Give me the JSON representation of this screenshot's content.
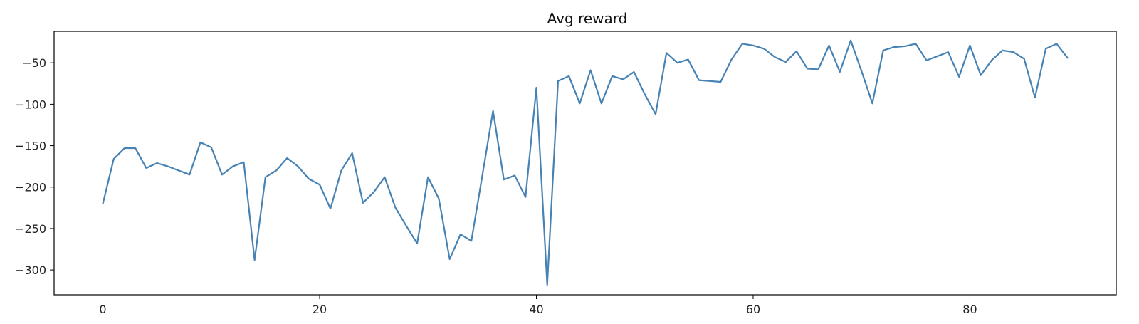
{
  "chart_data": {
    "type": "line",
    "title": "Avg reward",
    "xlabel": "",
    "ylabel": "",
    "xlim": [
      -4.5,
      93.5
    ],
    "ylim": [
      -330,
      -12
    ],
    "xticks": [
      0,
      20,
      40,
      60,
      80
    ],
    "yticks": [
      -300,
      -250,
      -200,
      -150,
      -100,
      -50
    ],
    "grid": false,
    "legend": "none",
    "series": [
      {
        "color": "#4682b4",
        "x": [
          0,
          1,
          2,
          3,
          4,
          5,
          6,
          7,
          8,
          9,
          10,
          11,
          12,
          13,
          14,
          15,
          16,
          17,
          18,
          19,
          20,
          21,
          22,
          23,
          24,
          25,
          26,
          27,
          28,
          29,
          30,
          31,
          32,
          33,
          34,
          35,
          36,
          37,
          38,
          39,
          40,
          41,
          42,
          43,
          44,
          45,
          46,
          47,
          48,
          49,
          50,
          51,
          52,
          53,
          54,
          55,
          56,
          57,
          58,
          59,
          60,
          61,
          62,
          63,
          64,
          65,
          66,
          67,
          68,
          69,
          70,
          71,
          72,
          73,
          74,
          75,
          76,
          77,
          78,
          79,
          80,
          81,
          82,
          83,
          84,
          85,
          86,
          87,
          88,
          89
        ],
        "y": [
          -220,
          -166,
          -153,
          -153,
          -177,
          -171,
          -175,
          -180,
          -185,
          -146,
          -152,
          -185,
          -175,
          -170,
          -288,
          -188,
          -180,
          -165,
          -175,
          -190,
          -197,
          -226,
          -180,
          -159,
          -219,
          -206,
          -188,
          -225,
          -247,
          -268,
          -188,
          -214,
          -287,
          -257,
          -265,
          -187,
          -108,
          -191,
          -186,
          -212,
          -80,
          -318,
          -72,
          -66,
          -99,
          -59,
          -99,
          -66,
          -70,
          -61,
          -88,
          -112,
          -38,
          -50,
          -46,
          -71,
          -72,
          -73,
          -46,
          -27,
          -29,
          -33,
          -43,
          -49,
          -36,
          -57,
          -58,
          -29,
          -61,
          -23,
          -60,
          -99,
          -35,
          -31,
          -30,
          -27,
          -47,
          -42,
          -37,
          -67,
          -29,
          -65,
          -47,
          -35,
          -37,
          -45,
          -92,
          -33,
          -27,
          -44
        ]
      }
    ]
  }
}
